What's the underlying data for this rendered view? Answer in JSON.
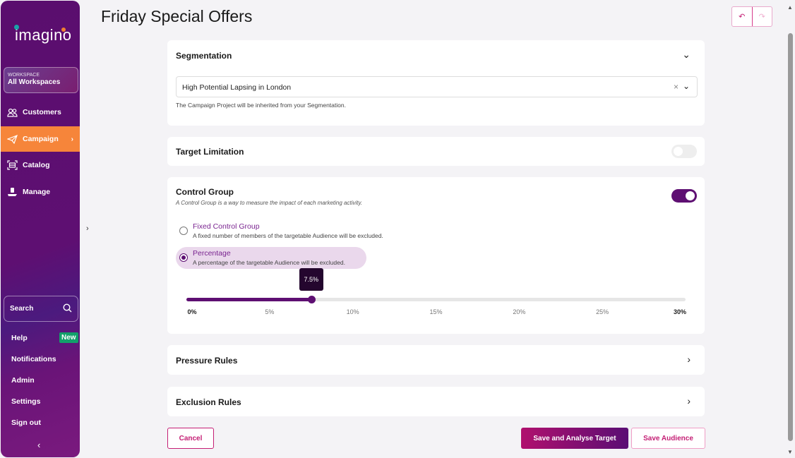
{
  "sidebar": {
    "logo": "imagino",
    "workspace_label": "WORKSPACE",
    "workspace_value": "All Workspaces",
    "items": [
      {
        "label": "Customers",
        "icon": "users-icon"
      },
      {
        "label": "Campaign",
        "icon": "paper-plane-icon",
        "active": true
      },
      {
        "label": "Catalog",
        "icon": "catalog-icon"
      },
      {
        "label": "Manage",
        "icon": "manage-icon"
      }
    ],
    "search_label": "Search",
    "bottom": [
      "Help",
      "Notifications",
      "Admin",
      "Settings",
      "Sign out"
    ],
    "new_badge": "New"
  },
  "page": {
    "title": "Friday Special Offers"
  },
  "segmentation": {
    "title": "Segmentation",
    "value": "High Potential Lapsing in London",
    "hint": "The Campaign Project will be inherited from your Segmentation."
  },
  "target_limitation": {
    "title": "Target Limitation",
    "enabled": false
  },
  "control_group": {
    "title": "Control Group",
    "description": "A Control Group is a way to measure the impact of each marketing activity.",
    "enabled": true,
    "options": [
      {
        "title": "Fixed Control Group",
        "subtitle": "A fixed number of members of the targetable Audience will be excluded.",
        "selected": false
      },
      {
        "title": "Percentage",
        "subtitle": "A percentage of the targetable Audience will be excluded.",
        "selected": true
      }
    ],
    "slider": {
      "value": 7.5,
      "value_label": "7.5%",
      "min": 0,
      "max": 30,
      "ticks": [
        "0%",
        "5%",
        "10%",
        "15%",
        "20%",
        "25%",
        "30%"
      ]
    }
  },
  "pressure_rules": {
    "title": "Pressure Rules"
  },
  "exclusion_rules": {
    "title": "Exclusion Rules"
  },
  "actions": {
    "cancel": "Cancel",
    "save_analyse": "Save and Analyse Target",
    "save_audience": "Save Audience"
  },
  "colors": {
    "primary": "#5e0f72",
    "accent": "#c41e74",
    "active_nav": "#f6853a",
    "badge": "#12a06a"
  }
}
